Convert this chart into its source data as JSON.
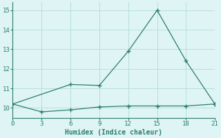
{
  "xlabel": "Humidex (Indice chaleur)",
  "line1_x": [
    0,
    3,
    6,
    9,
    12,
    15,
    18,
    21
  ],
  "line1_y": [
    10.2,
    9.8,
    9.9,
    10.05,
    10.1,
    10.1,
    10.1,
    10.2
  ],
  "line2_x": [
    0,
    6,
    9,
    12,
    15,
    18,
    21
  ],
  "line2_y": [
    10.2,
    11.2,
    11.15,
    12.9,
    15.0,
    12.4,
    10.2
  ],
  "line_color": "#2a7d6e",
  "bg_color": "#dff4f4",
  "grid_color": "#b8dede",
  "xlim": [
    0,
    21
  ],
  "ylim": [
    9.5,
    15.4
  ],
  "xticks": [
    0,
    3,
    6,
    9,
    12,
    15,
    18,
    21
  ],
  "yticks": [
    10,
    11,
    12,
    13,
    14,
    15
  ],
  "marker": "+",
  "markersize": 4,
  "linewidth": 0.9,
  "tick_fontsize": 6.5,
  "xlabel_fontsize": 7
}
